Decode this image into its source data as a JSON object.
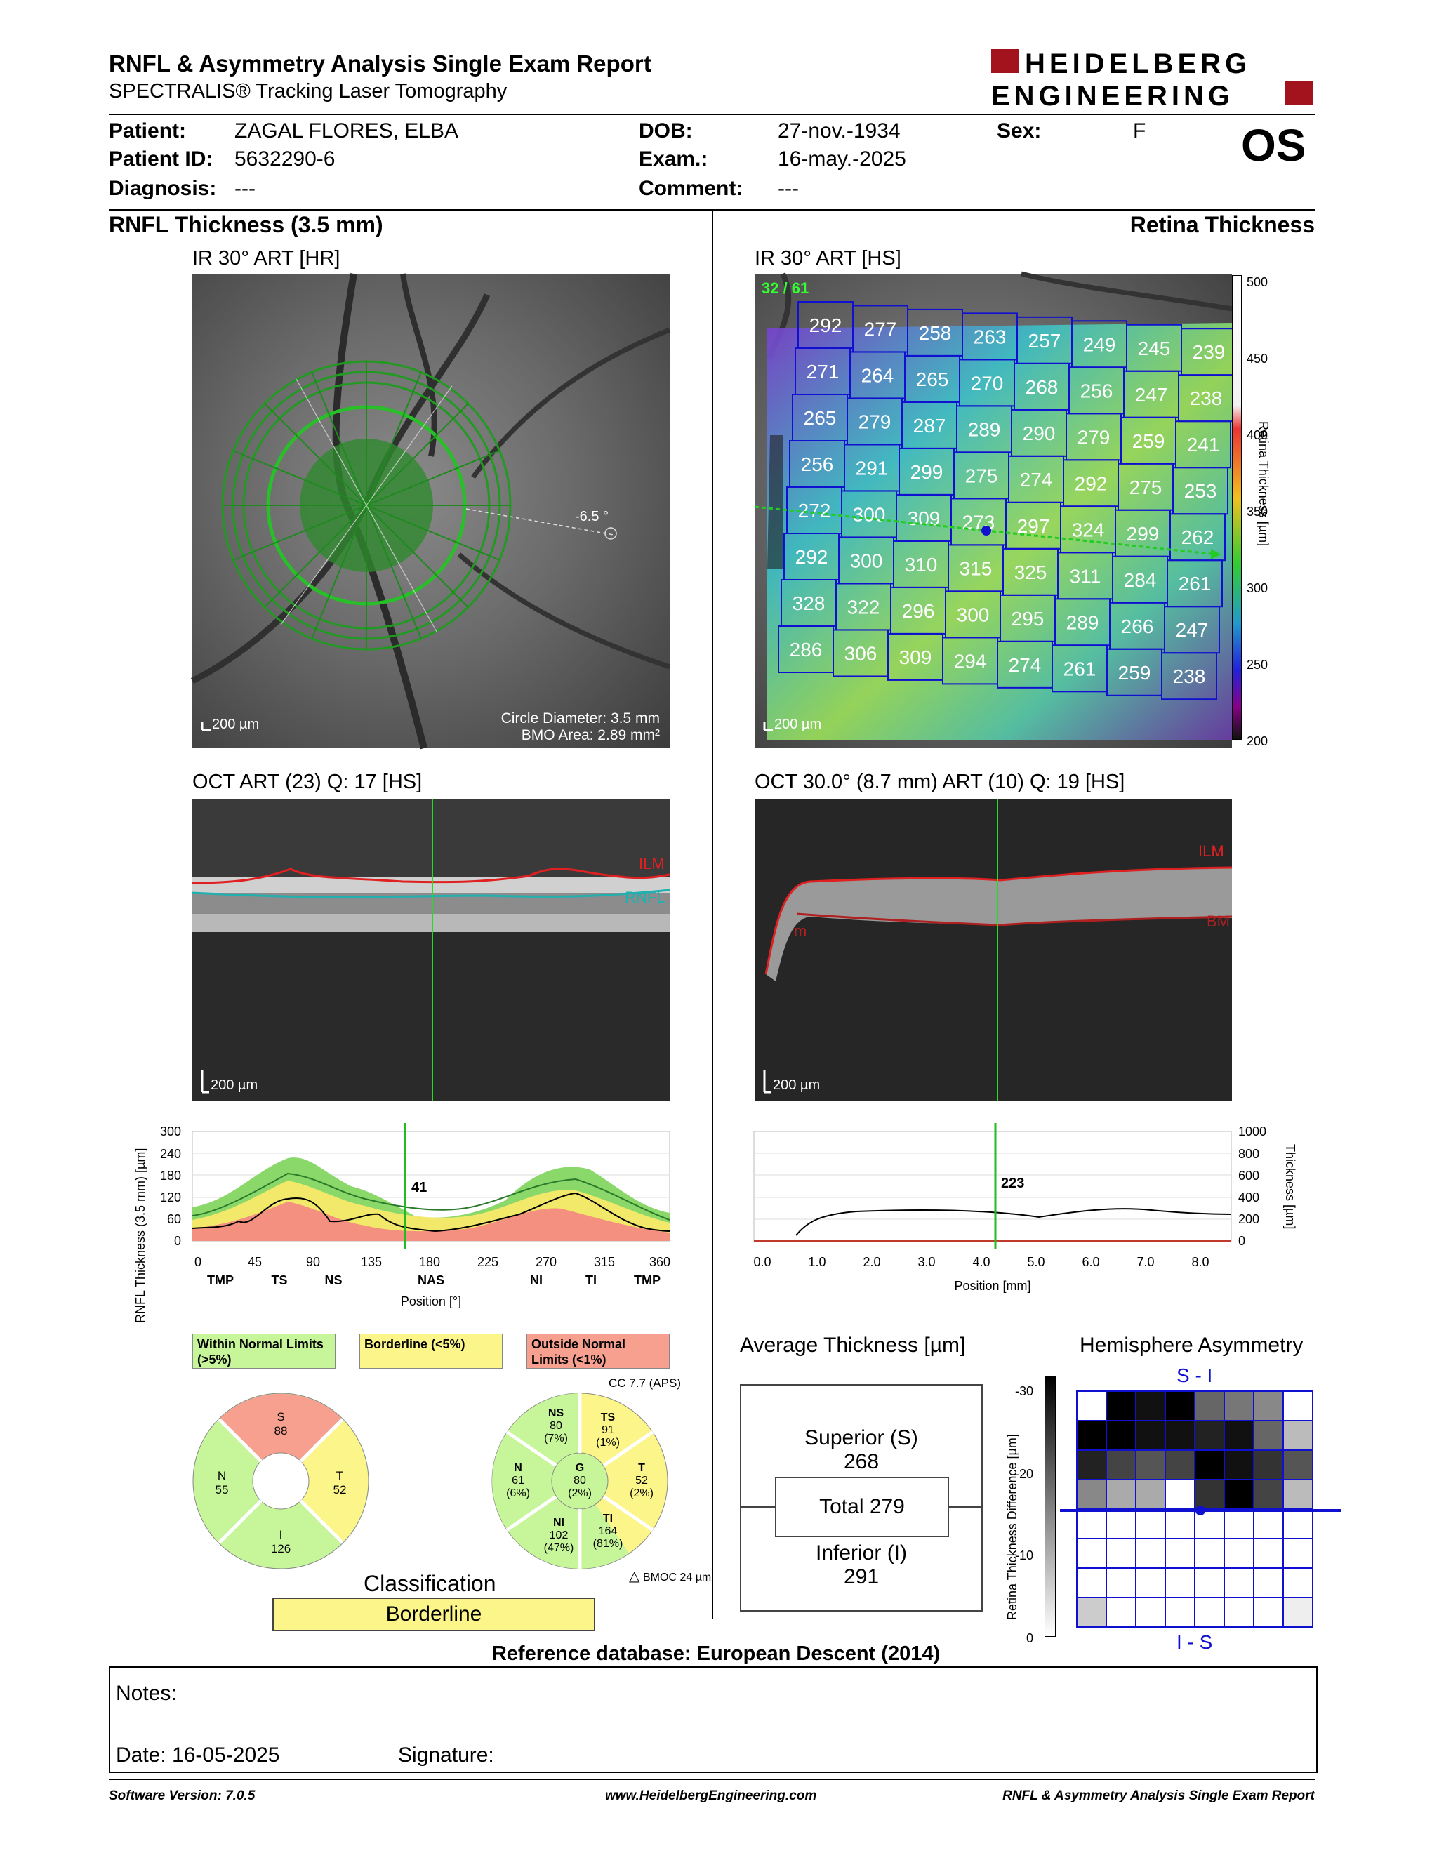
{
  "header": {
    "title": "RNFL & Asymmetry Analysis Single Exam Report",
    "subtitle": "SPECTRALIS® Tracking Laser Tomography",
    "logo_line1": "HEIDELBERG",
    "logo_line2": "ENGINEERING",
    "eye": "OS"
  },
  "patient": {
    "patient_label": "Patient:",
    "patient": "ZAGAL FLORES, ELBA",
    "id_label": "Patient ID:",
    "id": "5632290-6",
    "diagnosis_label": "Diagnosis:",
    "diagnosis": "---",
    "dob_label": "DOB:",
    "dob": "27-nov.-1934",
    "exam_label": "Exam.:",
    "exam": "16-may.-2025",
    "comment_label": "Comment:",
    "comment": "---",
    "sex_label": "Sex:",
    "sex": "F"
  },
  "left": {
    "section_title": "RNFL Thickness (3.5 mm)",
    "ir_label": "IR 30° ART [HR]",
    "ir_angle": "-6.5 °",
    "ir_scale": "200 µm",
    "circle_diameter": "Circle Diameter: 3.5 mm",
    "bmo_area": "BMO Area: 2.89 mm²",
    "oct_label": "OCT ART (23) Q: 17 [HS]",
    "oct_ilm": "ILM",
    "oct_rnfl": "RNFL",
    "oct_scale": "200 µm",
    "graph": {
      "ylabel": "RNFL Thickness (3.5 mm) [µm]",
      "yticks": [
        "300",
        "240",
        "180",
        "120",
        "60",
        "0"
      ],
      "xticks": [
        "0",
        "45",
        "90",
        "135",
        "180",
        "225",
        "270",
        "315",
        "360"
      ],
      "sectors": [
        "TMP",
        "TS",
        "NS",
        "NAS",
        "NI",
        "TI",
        "TMP"
      ],
      "xlabel": "Position [°]",
      "cursor_value": "41"
    },
    "legend": {
      "within": "Within Normal Limits (>5%)",
      "borderline": "Borderline (<5%)",
      "outside": "Outside Normal Limits (<1%)"
    },
    "sectors_chart": {
      "apsl": "CC 7.7 (APS)",
      "s": {
        "label": "S",
        "value": "88"
      },
      "n": {
        "label": "N",
        "value": "55"
      },
      "t": {
        "label": "T",
        "value": "52"
      },
      "i": {
        "label": "I",
        "value": "126"
      },
      "ns": {
        "label": "NS",
        "value": "80",
        "pct": "(7%)"
      },
      "ts": {
        "label": "TS",
        "value": "91",
        "pct": "(1%)"
      },
      "n6": {
        "label": "N",
        "value": "61",
        "pct": "(6%)"
      },
      "g": {
        "label": "G",
        "value": "80",
        "pct": "(2%)"
      },
      "t6": {
        "label": "T",
        "value": "52",
        "pct": "(2%)"
      },
      "ni": {
        "label": "NI",
        "value": "102",
        "pct": "(47%)"
      },
      "ti": {
        "label": "TI",
        "value": "164",
        "pct": "(81%)"
      },
      "bmoc": "BMOC 24 µm"
    },
    "classification_label": "Classification",
    "classification": "Borderline"
  },
  "right": {
    "section_title": "Retina Thickness",
    "ir_label": "IR 30° ART [HS]",
    "ir_counter": "32 / 61",
    "ir_scale": "200 µm",
    "colorbar": {
      "ticks": [
        "500",
        "450",
        "400",
        "350",
        "300",
        "250",
        "200"
      ],
      "label": "Retina Thickness [µm]"
    },
    "grid": [
      [
        "292",
        "277",
        "258",
        "263",
        "257",
        "249",
        "245",
        "239"
      ],
      [
        "271",
        "264",
        "265",
        "270",
        "268",
        "256",
        "247",
        "238"
      ],
      [
        "265",
        "279",
        "287",
        "289",
        "290",
        "279",
        "259",
        "241"
      ],
      [
        "256",
        "291",
        "299",
        "275",
        "274",
        "292",
        "275",
        "253"
      ],
      [
        "272",
        "300",
        "309",
        "273",
        "297",
        "324",
        "299",
        "262"
      ],
      [
        "292",
        "300",
        "310",
        "315",
        "325",
        "311",
        "284",
        "261"
      ],
      [
        "328",
        "322",
        "296",
        "300",
        "295",
        "289",
        "266",
        "247"
      ],
      [
        "286",
        "306",
        "309",
        "294",
        "274",
        "261",
        "259",
        "238"
      ]
    ],
    "oct_label": "OCT 30.0° (8.7 mm) ART (10) Q: 19 [HS]",
    "oct_ilm": "ILM",
    "oct_bm": "BM",
    "oct_m": "m",
    "oct_scale": "200 µm",
    "graph": {
      "yticks": [
        "1000",
        "800",
        "600",
        "400",
        "200",
        "0"
      ],
      "ylabel": "Thickness [µm]",
      "xticks": [
        "0.0",
        "1.0",
        "2.0",
        "3.0",
        "4.0",
        "5.0",
        "6.0",
        "7.0",
        "8.0"
      ],
      "xlabel": "Position [mm]",
      "cursor_value": "223"
    },
    "avg": {
      "title": "Average Thickness [µm]",
      "superior_label": "Superior (S)",
      "superior": "268",
      "total": "Total 279",
      "inferior_label": "Inferior (I)",
      "inferior": "291"
    },
    "asym": {
      "title": "Hemisphere Asymmetry",
      "top": "S - I",
      "bottom": "I - S",
      "ylabel": "Retina Thickness Difference [µm]",
      "yticks": [
        "-30",
        "-20",
        "-10",
        "0"
      ]
    }
  },
  "reference": "Reference database: European Descent (2014)",
  "notes": {
    "label": "Notes:",
    "date": "Date: 16-05-2025",
    "signature": "Signature:"
  },
  "footer": {
    "version": "Software Version: 7.0.5",
    "url": "www.HeidelbergEngineering.com",
    "report": "RNFL & Asymmetry Analysis Single Exam Report"
  },
  "colors": {
    "within": "#c6f59a",
    "borderline": "#fbf58a",
    "outside": "#f7a08f",
    "brand": "#a3131d",
    "grid_line": "#1010d0"
  }
}
